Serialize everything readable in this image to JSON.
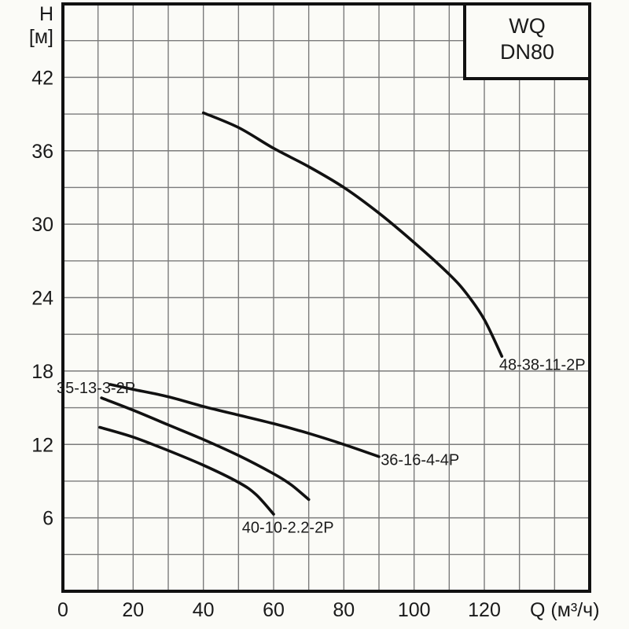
{
  "title_box": {
    "line1": "WQ",
    "line2": "DN80"
  },
  "axes": {
    "y_title_line1": "H",
    "y_title_line2": "[м]",
    "x_title": "Q (м³/ч)"
  },
  "colors": {
    "background": "#fbfbf7",
    "curve": "#111111",
    "border": "#111111",
    "grid": "#7b7b7b",
    "text": "#1a1a1a"
  },
  "chart_data": {
    "type": "line",
    "title": "WQ DN80",
    "xlabel": "Q (м³/ч)",
    "ylabel": "H [м]",
    "xlim": [
      0,
      150
    ],
    "ylim": [
      0,
      48
    ],
    "grid": "on",
    "x_grid_step": 10,
    "y_grid_step": 3,
    "x_ticks": [
      0,
      20,
      40,
      60,
      80,
      100,
      120
    ],
    "y_ticks": [
      42,
      36,
      30,
      24,
      18,
      12,
      6
    ],
    "series": [
      {
        "name": "48-38-11-2P",
        "points": [
          [
            40,
            39.1
          ],
          [
            50,
            37.9
          ],
          [
            60,
            36.2
          ],
          [
            70,
            34.7
          ],
          [
            80,
            33.0
          ],
          [
            90,
            30.9
          ],
          [
            100,
            28.5
          ],
          [
            110,
            25.9
          ],
          [
            115,
            24.3
          ],
          [
            120,
            22.2
          ],
          [
            125,
            19.2
          ]
        ],
        "label": {
          "text": "48-38-11-2P",
          "q": 148.8,
          "h": 18.1,
          "anchor": "end"
        }
      },
      {
        "name": "36-16-4-4P",
        "points": [
          [
            13.5,
            16.9
          ],
          [
            20,
            16.5
          ],
          [
            30,
            15.9
          ],
          [
            40,
            15.1
          ],
          [
            50,
            14.4
          ],
          [
            60,
            13.7
          ],
          [
            70,
            12.9
          ],
          [
            80,
            12.0
          ],
          [
            90,
            11.0
          ]
        ],
        "label": {
          "text": "36-16-4-4P",
          "q": 90.5,
          "h": 10.3,
          "anchor": "start"
        }
      },
      {
        "name": "35-13-3-2P",
        "points": [
          [
            11,
            15.8
          ],
          [
            20,
            14.8
          ],
          [
            30,
            13.6
          ],
          [
            40,
            12.4
          ],
          [
            50,
            11.1
          ],
          [
            60,
            9.6
          ],
          [
            65,
            8.7
          ],
          [
            70,
            7.5
          ]
        ],
        "label": {
          "text": "35-13-3-2P",
          "q": -1.8,
          "h": 16.2,
          "anchor": "start"
        }
      },
      {
        "name": "40-10-2.2-2P",
        "points": [
          [
            10.5,
            13.4
          ],
          [
            20,
            12.6
          ],
          [
            30,
            11.5
          ],
          [
            40,
            10.3
          ],
          [
            50,
            8.9
          ],
          [
            55,
            7.9
          ],
          [
            60,
            6.3
          ]
        ],
        "label": {
          "text": "40-10-2.2-2P",
          "q": 51.0,
          "h": 4.8,
          "anchor": "start"
        }
      }
    ]
  }
}
